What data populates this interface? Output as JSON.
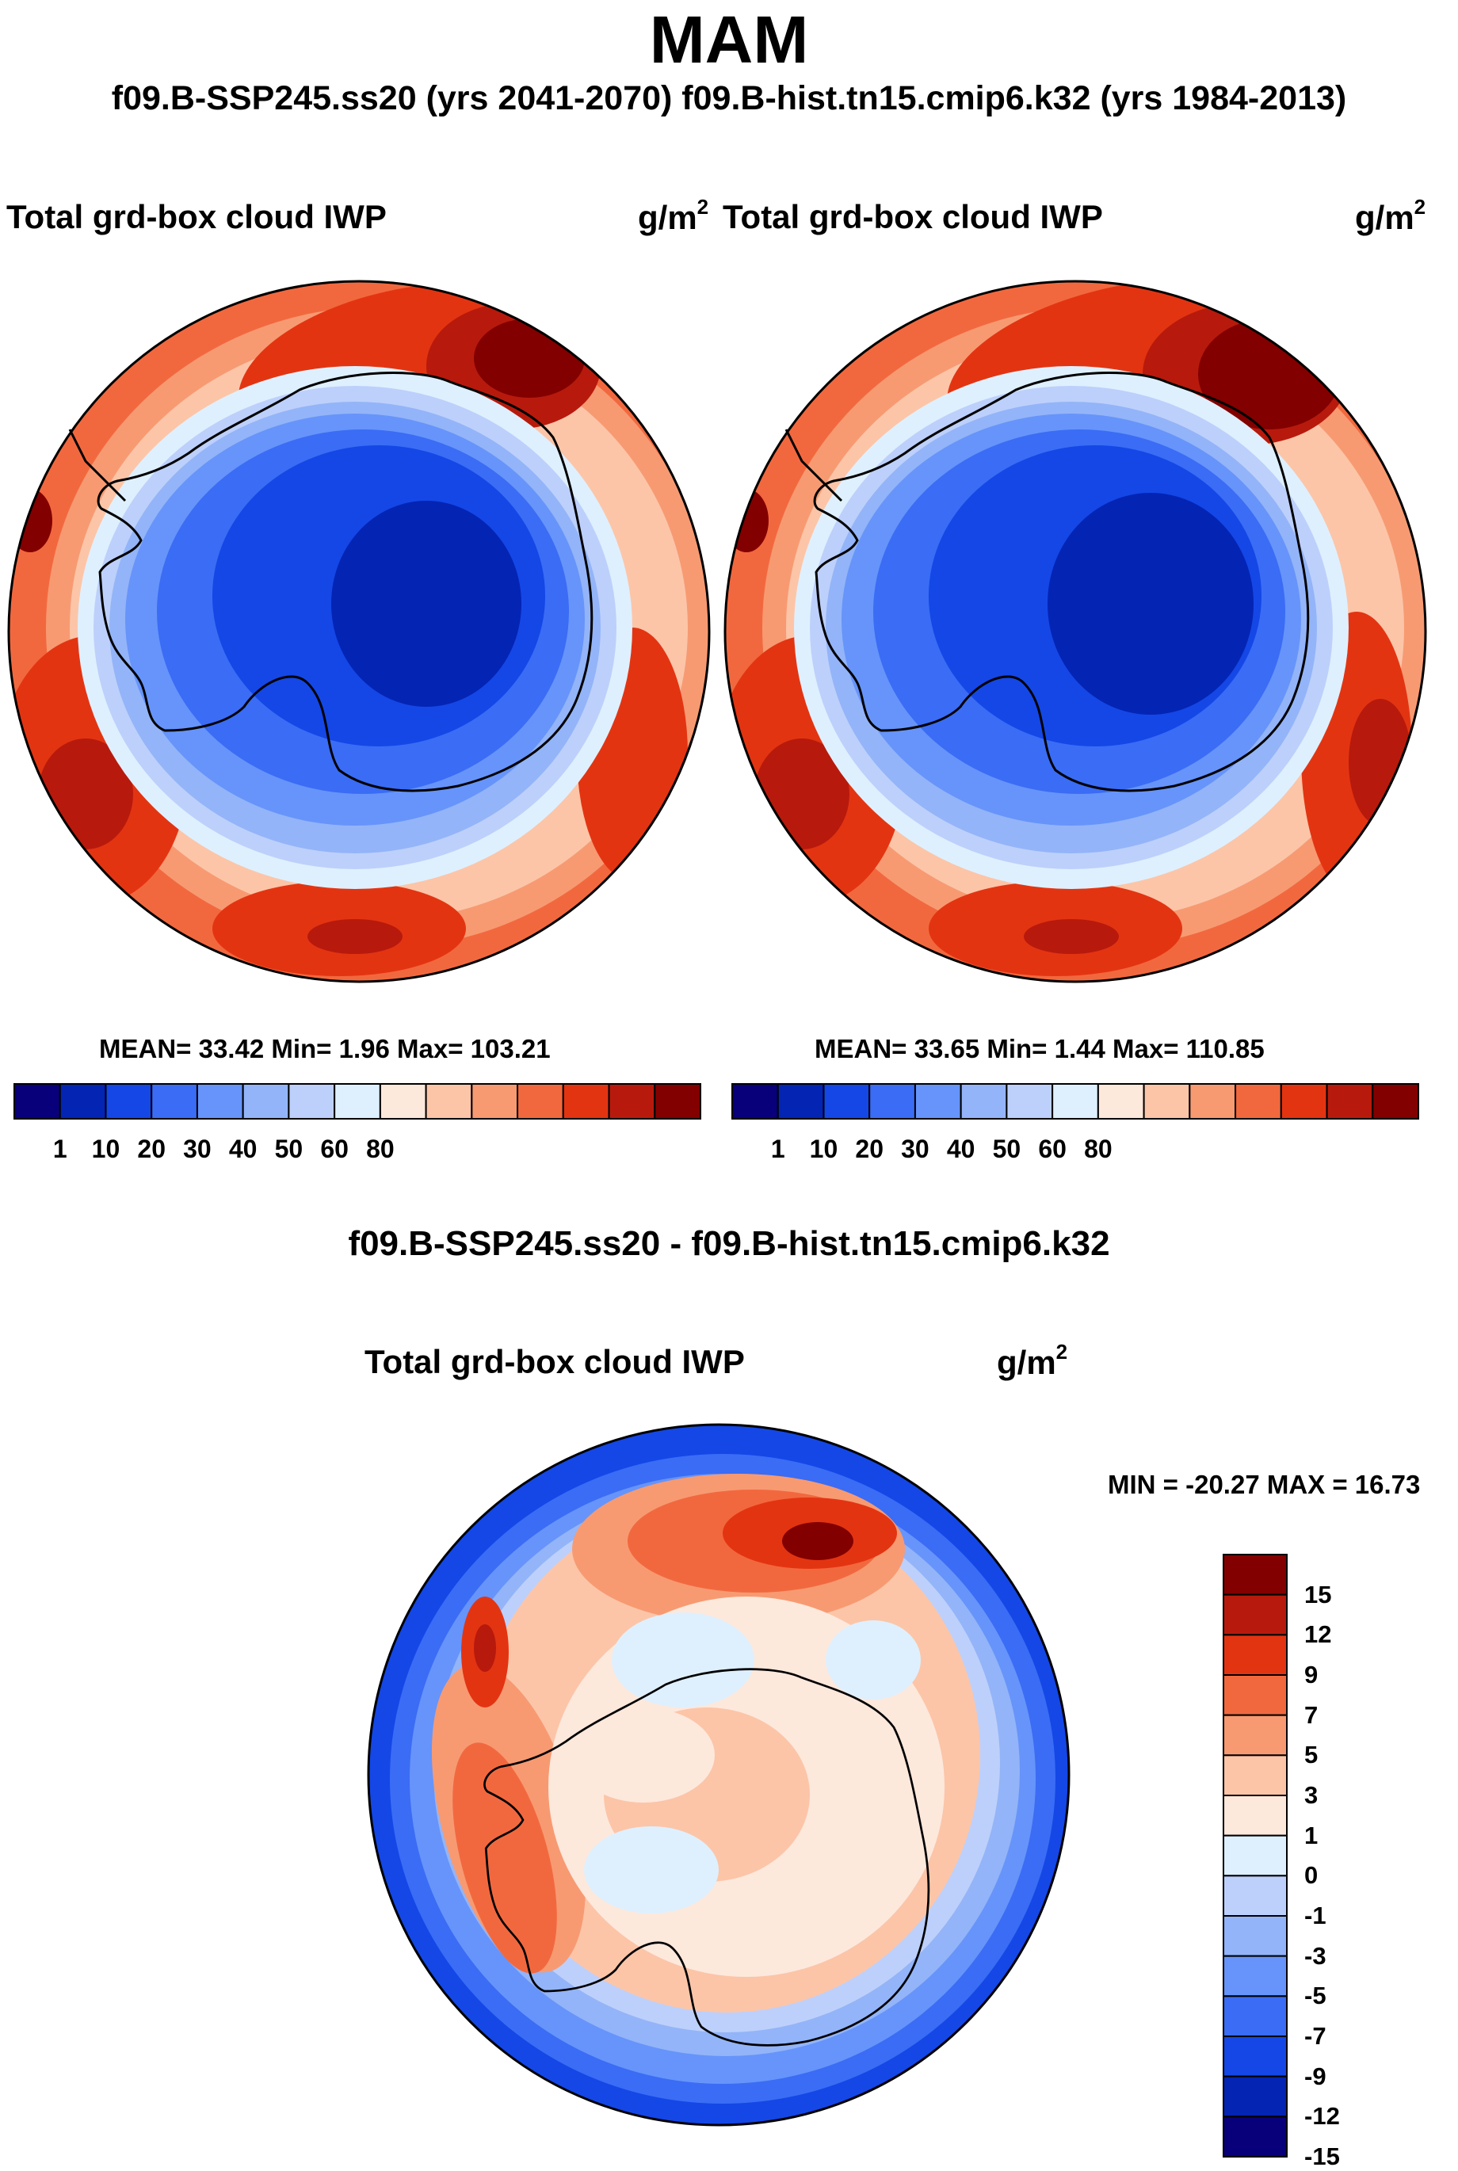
{
  "figure": {
    "title": "MAM",
    "subtitle": "f09.B-SSP245.ss20 (yrs 2041-2070)  f09.B-hist.tn15.cmip6.k32 (yrs 1984-2013)",
    "diff_title": "f09.B-SSP245.ss20 - f09.B-hist.tn15.cmip6.k32"
  },
  "panels": [
    {
      "id": "future",
      "title": "Total grd-box cloud IWP",
      "units": "g/m",
      "units_exp": "2",
      "stats": "MEAN=  33.42  Min=   1.96  Max= 103.21",
      "mean": 33.42,
      "min": 1.96,
      "max": 103.21
    },
    {
      "id": "historical",
      "title": "Total grd-box cloud IWP",
      "units": "g/m",
      "units_exp": "2",
      "stats": "MEAN=  33.65  Min=   1.44  Max= 110.85",
      "mean": 33.65,
      "min": 1.44,
      "max": 110.85
    },
    {
      "id": "difference",
      "title": "Total grd-box cloud IWP",
      "units": "g/m",
      "units_exp": "2",
      "stats": "MIN = -20.27 MAX =  16.73",
      "min": -20.27,
      "max": 16.73
    }
  ],
  "colorbars": {
    "abs": {
      "colors": [
        "#08007a",
        "#0424b4",
        "#1447e6",
        "#3a6cf5",
        "#6694fa",
        "#93b4f8",
        "#bdd0fb",
        "#def0fe",
        "#fde8dc",
        "#fcc5a8",
        "#f79a72",
        "#f2683e",
        "#e33412",
        "#b71a0c",
        "#820000"
      ],
      "labels": [
        "1",
        "10",
        "20",
        "30",
        "40",
        "50",
        "60",
        "80"
      ]
    },
    "diff": {
      "colors": [
        "#820000",
        "#b71a0c",
        "#e33412",
        "#f2683e",
        "#f79a72",
        "#fcc5a8",
        "#fde8dc",
        "#def0fe",
        "#bdd0fb",
        "#93b4f8",
        "#6694fa",
        "#3a6cf5",
        "#1447e6",
        "#0424b4",
        "#08007a"
      ],
      "labels": [
        "15",
        "12",
        "9",
        "7",
        "5",
        "3",
        "1",
        "0",
        "-1",
        "-3",
        "-5",
        "-7",
        "-9",
        "-12",
        "-15"
      ]
    }
  },
  "map_colors": {
    "ocean_high": "#e84a20",
    "ocean_mid": "#f79a72",
    "ocean_peak": "#a8150a",
    "ring_light": "#dbe9fd",
    "ice_blue": "#3b66ea",
    "ice_deep": "#1d3fd2",
    "diff_outer": "#2a55e0",
    "diff_ring": "#f5a27f",
    "diff_land": "#fde6d6",
    "diff_peak": "#b81c0c"
  }
}
